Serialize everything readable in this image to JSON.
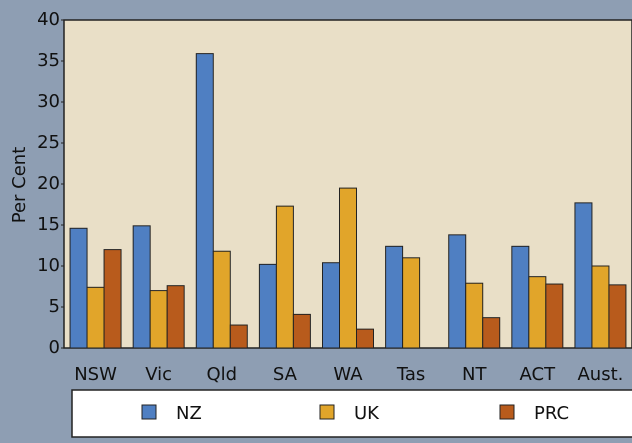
{
  "chart_data": {
    "type": "bar",
    "y_label": "Per Cent",
    "categories": [
      "NSW",
      "Vic",
      "Qld",
      "SA",
      "WA",
      "Tas",
      "NT",
      "ACT",
      "Aust."
    ],
    "series": [
      {
        "name": "NZ",
        "color": "#4f7fc2",
        "values": [
          14.6,
          14.9,
          35.9,
          10.2,
          10.4,
          12.4,
          13.8,
          12.4,
          17.7
        ]
      },
      {
        "name": "UK",
        "color": "#e1a52a",
        "values": [
          7.4,
          7.0,
          11.8,
          17.3,
          19.5,
          11.0,
          7.9,
          8.7,
          10.0
        ]
      },
      {
        "name": "PRC",
        "color": "#b85b1c",
        "values": [
          12.0,
          7.6,
          2.8,
          4.1,
          2.3,
          null,
          3.7,
          7.8,
          7.7
        ]
      }
    ],
    "ylim": [
      0,
      40
    ],
    "yticks": [
      0,
      5,
      10,
      15,
      20,
      25,
      30,
      35,
      40
    ]
  }
}
